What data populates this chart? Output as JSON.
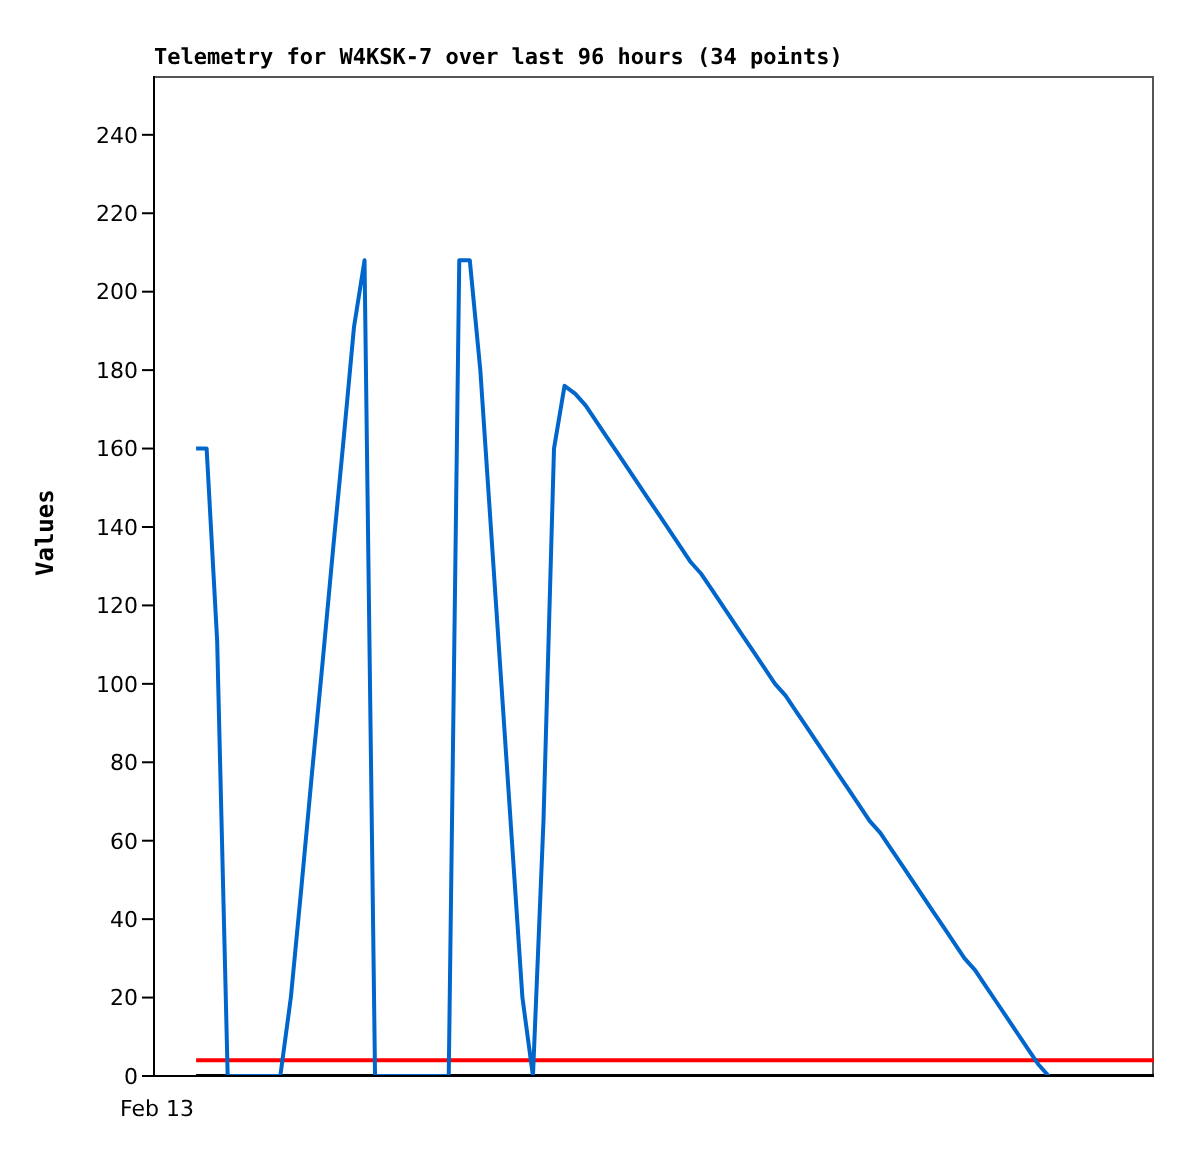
{
  "chart_data": {
    "type": "line",
    "title": "Telemetry for W4KSK-7 over last 96 hours (34 points)",
    "ylabel": "Values",
    "annotations": [
      "Feb 13"
    ],
    "categories": [
      null,
      null,
      null,
      null,
      null,
      null,
      null,
      null,
      null,
      null,
      null,
      null,
      null,
      null,
      null,
      null,
      null,
      null,
      null,
      null,
      null,
      null,
      null,
      null,
      null,
      null,
      null,
      null,
      null,
      null,
      null,
      null,
      null,
      null,
      null,
      null,
      null,
      null,
      null,
      null,
      null,
      null,
      null,
      null,
      null,
      null,
      null,
      null,
      null,
      null,
      null,
      null,
      null,
      null,
      null,
      null,
      null,
      null,
      null,
      null,
      null,
      null,
      null,
      null,
      null,
      null,
      null,
      null,
      null,
      null,
      null,
      null,
      null,
      null,
      null,
      null,
      null,
      null,
      null,
      null,
      null,
      null,
      null,
      null,
      null,
      null,
      null,
      null,
      null,
      null,
      null,
      null,
      null,
      null,
      null,
      null
    ],
    "ylim": [
      0,
      255
    ],
    "yticks": [
      0,
      20,
      40,
      60,
      80,
      100,
      120,
      140,
      160,
      180,
      200,
      220,
      240
    ],
    "marker": "none",
    "line_style": "solid",
    "series": [
      {
        "color": "#000000",
        "values": [
          null,
          null,
          null,
          null,
          0,
          0,
          0,
          0,
          0,
          0,
          0,
          0,
          0,
          0,
          0,
          0,
          0,
          0,
          0,
          0,
          0,
          0,
          0,
          0,
          0,
          0,
          0,
          0,
          0,
          0,
          0,
          0,
          0,
          0,
          0,
          0,
          0,
          0,
          0,
          0,
          0,
          0,
          0,
          0,
          0,
          0,
          0,
          0,
          0,
          0,
          0,
          0,
          0,
          0,
          0,
          0,
          0,
          0,
          0,
          0,
          0,
          0,
          0,
          0,
          0,
          0,
          0,
          0,
          0,
          0,
          0,
          0,
          0,
          0,
          0,
          0,
          0,
          0,
          0,
          0,
          0,
          0,
          0,
          0,
          0,
          0,
          0,
          0,
          0,
          0,
          0,
          0,
          0,
          0,
          0,
          0
        ]
      },
      {
        "color": "#ff0000",
        "values": [
          null,
          null,
          null,
          null,
          4,
          4,
          4,
          4,
          4,
          4,
          4,
          4,
          4,
          4,
          4,
          4,
          4,
          4,
          4,
          4,
          4,
          4,
          4,
          4,
          4,
          4,
          4,
          4,
          4,
          4,
          4,
          4,
          4,
          4,
          4,
          4,
          4,
          4,
          4,
          4,
          4,
          4,
          4,
          4,
          4,
          4,
          4,
          4,
          4,
          4,
          4,
          4,
          4,
          4,
          4,
          4,
          4,
          4,
          4,
          4,
          4,
          4,
          4,
          4,
          4,
          4,
          4,
          4,
          4,
          4,
          4,
          4,
          4,
          4,
          4,
          4,
          4,
          4,
          4,
          4,
          4,
          4,
          4,
          4,
          4,
          4,
          4,
          4,
          4,
          4,
          4,
          4,
          4,
          4,
          4,
          4
        ]
      },
      {
        "color": "#0066cc",
        "values": [
          null,
          null,
          null,
          null,
          160,
          160,
          111,
          0,
          0,
          0,
          0,
          0,
          0,
          20,
          48,
          77,
          105,
          134,
          162,
          191,
          208,
          0,
          0,
          0,
          0,
          0,
          0,
          0,
          0,
          208,
          208,
          180,
          140,
          100,
          60,
          20,
          0,
          65,
          160,
          176,
          174,
          171,
          167,
          163,
          159,
          155,
          151,
          147,
          143,
          139,
          135,
          131,
          128,
          124,
          120,
          116,
          112,
          108,
          104,
          100,
          97,
          93,
          89,
          85,
          81,
          77,
          73,
          69,
          65,
          62,
          58,
          54,
          50,
          46,
          42,
          38,
          34,
          30,
          27,
          23,
          19,
          15,
          11,
          7,
          3,
          0,
          null,
          null,
          null,
          null,
          null,
          null,
          null,
          null,
          null,
          null
        ]
      }
    ]
  }
}
